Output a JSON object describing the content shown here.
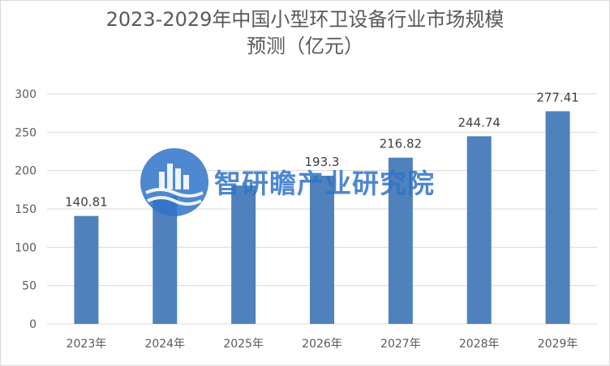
{
  "chart_data": {
    "type": "bar",
    "title_lines": [
      "2023-2029年中国小型环卫设备行业市场规模",
      "预测（亿元）"
    ],
    "categories": [
      "2023年",
      "2024年",
      "2025年",
      "2026年",
      "2027年",
      "2028年",
      "2029年"
    ],
    "values": [
      140.81,
      166.5,
      180.5,
      193.3,
      216.82,
      244.74,
      277.41
    ],
    "data_labels": [
      "140.81",
      "",
      "",
      "193.3",
      "216.82",
      "244.74",
      "277.41"
    ],
    "ylim": [
      0,
      300
    ],
    "yticks": [
      0,
      50,
      100,
      150,
      200,
      250,
      300
    ],
    "grid": true,
    "bar_color": "#4f81bd",
    "grid_color": "#d9d9d9"
  },
  "watermark": {
    "text": "智研瞻产业研究院",
    "color": "#2f73c8"
  }
}
